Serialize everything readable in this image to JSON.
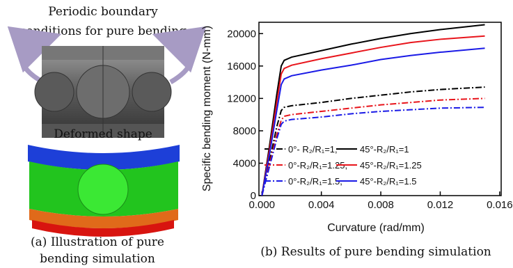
{
  "panel_a": {
    "top_text_1": "Periodic boundary",
    "top_text_2": "conditions for pure bending",
    "middle_text": "Deformed shape",
    "caption_1": "(a) Illustration of pure",
    "caption_2": "bending simulation"
  },
  "chart_data": {
    "type": "line",
    "caption": "(b) Results of pure bending simulation",
    "x_label": "Curvature (rad/mm)",
    "y_label": "Specific bending moment (N-mm)",
    "x": [
      0,
      0.0005,
      0.001,
      0.0013,
      0.0015,
      0.002,
      0.004,
      0.006,
      0.008,
      0.01,
      0.012,
      0.015
    ],
    "series": [
      {
        "name": "0°- R₂/R₁=1,",
        "color": "#000000",
        "dash": "dashdot",
        "values": [
          0,
          4200,
          8500,
          10500,
          10900,
          11100,
          11500,
          12000,
          12400,
          12800,
          13100,
          13400
        ]
      },
      {
        "name": "45°-R₂/R₁=1",
        "color": "#000000",
        "dash": "solid",
        "values": [
          0,
          6000,
          12500,
          16000,
          16700,
          17100,
          17900,
          18700,
          19400,
          20000,
          20500,
          21100
        ]
      },
      {
        "name": "0°-R₂/R₁=1.25,",
        "color": "#e8141b",
        "dash": "dashdot",
        "values": [
          0,
          3800,
          7500,
          9300,
          9800,
          10000,
          10400,
          10800,
          11200,
          11500,
          11800,
          12000
        ]
      },
      {
        "name": "45°-R₂/R₁=1.25",
        "color": "#e8141b",
        "dash": "solid",
        "values": [
          0,
          5500,
          11500,
          15000,
          15700,
          16100,
          16900,
          17600,
          18300,
          18900,
          19300,
          19700
        ]
      },
      {
        "name": "0°-R₂/R₁=1.5,",
        "color": "#1a1ae6",
        "dash": "dashdot",
        "values": [
          0,
          3500,
          7000,
          8800,
          9200,
          9400,
          9700,
          10100,
          10400,
          10600,
          10800,
          10900
        ]
      },
      {
        "name": "45°-R₂/R₁=1.5",
        "color": "#1a1ae6",
        "dash": "solid",
        "values": [
          0,
          5000,
          10500,
          13700,
          14400,
          14800,
          15500,
          16100,
          16800,
          17300,
          17700,
          18200
        ]
      }
    ],
    "xlim": [
      -0.0002,
      0.0161
    ],
    "ylim": [
      0,
      21400
    ],
    "xticks": [
      {
        "value": 0,
        "label": "0.000"
      },
      {
        "value": 0.004,
        "label": "0.004"
      },
      {
        "value": 0.008,
        "label": "0.008"
      },
      {
        "value": 0.012,
        "label": "0.012"
      },
      {
        "value": 0.016,
        "label": "0.016"
      }
    ],
    "yticks": [
      0,
      4000,
      8000,
      12000,
      16000,
      20000
    ],
    "legend": "lower-left"
  }
}
